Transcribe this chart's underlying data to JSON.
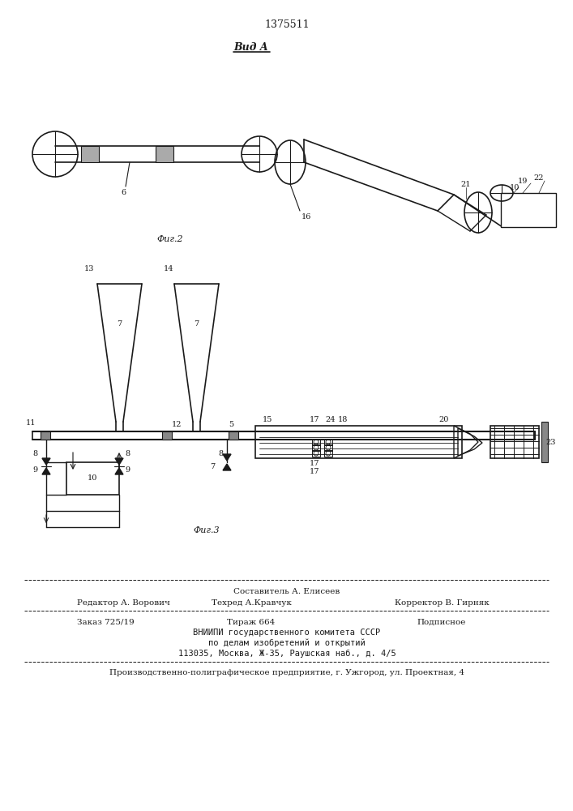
{
  "patent_number": "1375511",
  "fig2_label": "Фиг.2",
  "fig3_label": "Фиг.3",
  "vida_label": "Вид A",
  "bg_color": "#f5f5f0",
  "line_color": "#1a1a1a",
  "footer_line1_left": "Редактор А. Ворович",
  "footer_line1_center": "Техред А.Кравчук",
  "footer_line1_right": "Корректор В. Гирняк",
  "footer_composer": "Составитель А. Елисеев",
  "footer_zakaz": "Заказ 725/19",
  "footer_tirazh": "Тираж 664",
  "footer_podpisnoe": "Подписное",
  "footer_vniiipi": "ВНИИПИ государственного комитета СССР",
  "footer_po_delam": "по делам изобретений и открытий",
  "footer_address": "113035, Москва, Ж-35, Раушская наб., д. 4/5",
  "footer_proizv": "Производственно-полиграфическое предприятие, г. Ужгород, ул. Проектная, 4"
}
